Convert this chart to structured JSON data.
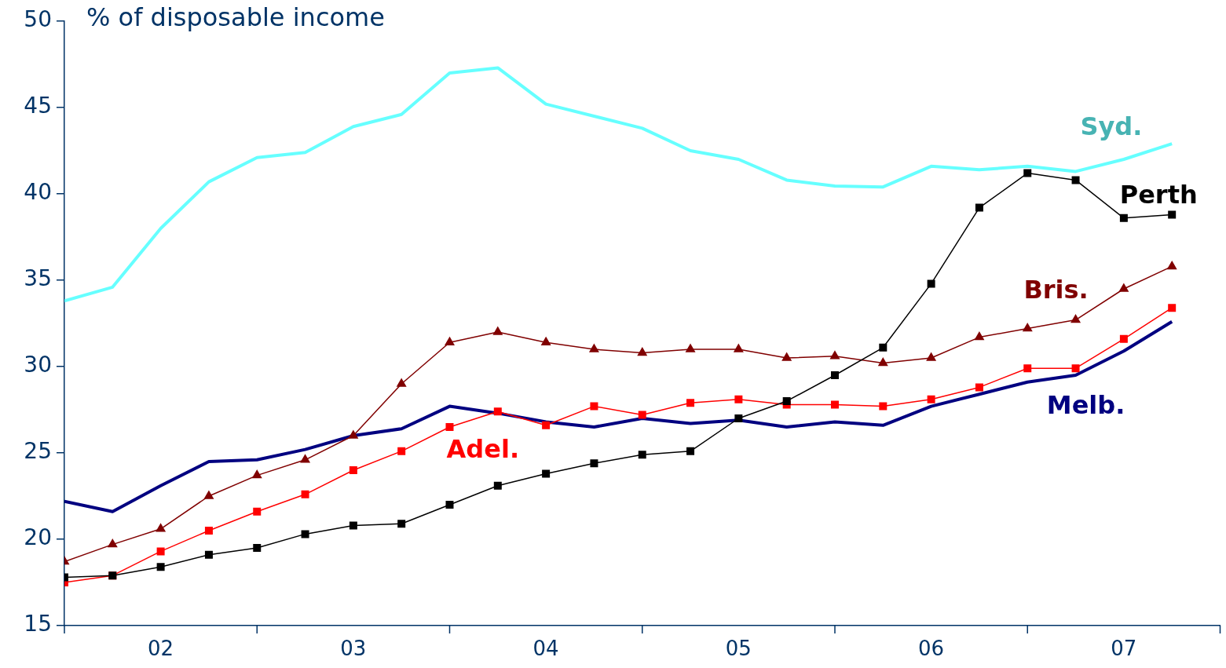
{
  "chart_data": {
    "type": "line",
    "ylabel": "% of disposable income",
    "categories": [
      null,
      null,
      "02",
      null,
      null,
      null,
      "03",
      null,
      null,
      null,
      "04",
      null,
      null,
      null,
      "05",
      null,
      null,
      null,
      "06",
      null,
      null,
      null,
      "07",
      null
    ],
    "ylim": [
      15,
      50
    ],
    "yticks": [
      15,
      20,
      25,
      30,
      35,
      40,
      45,
      50
    ],
    "series": [
      {
        "name": "Syd.",
        "color": "#66ffff",
        "marker": "none",
        "values": [
          33.8,
          34.6,
          38.0,
          40.7,
          42.1,
          42.4,
          43.9,
          44.6,
          47.0,
          47.3,
          45.2,
          44.5,
          43.8,
          42.5,
          42.0,
          40.8,
          40.45,
          40.4,
          41.6,
          41.4,
          41.6,
          41.3,
          42.0,
          42.9
        ]
      },
      {
        "name": "Melb.",
        "color": "#000080",
        "marker": "none",
        "values": [
          22.2,
          21.6,
          23.1,
          24.5,
          24.6,
          25.2,
          26.0,
          26.4,
          27.7,
          27.3,
          26.8,
          26.5,
          27.0,
          26.7,
          26.9,
          26.5,
          26.8,
          26.6,
          27.7,
          28.4,
          29.1,
          29.5,
          30.9,
          32.6
        ]
      },
      {
        "name": "Bris.",
        "color": "#800000",
        "marker": "triangle",
        "values": [
          18.7,
          19.7,
          20.6,
          22.5,
          23.7,
          24.6,
          26.0,
          29.0,
          31.4,
          32.0,
          31.4,
          31.0,
          30.8,
          31.0,
          31.0,
          30.5,
          30.6,
          30.2,
          30.5,
          31.7,
          32.2,
          32.7,
          34.5,
          35.8
        ]
      },
      {
        "name": "Adel.",
        "color": "#ff0000",
        "marker": "square",
        "values": [
          17.5,
          17.9,
          19.3,
          20.5,
          21.6,
          22.6,
          24.0,
          25.1,
          26.5,
          27.4,
          26.6,
          27.7,
          27.2,
          27.9,
          28.1,
          27.8,
          27.8,
          27.7,
          28.1,
          28.8,
          29.9,
          29.9,
          31.6,
          33.4
        ]
      },
      {
        "name": "Perth",
        "color": "#000000",
        "marker": "square",
        "values": [
          17.8,
          17.9,
          18.4,
          19.1,
          19.5,
          20.3,
          20.8,
          20.9,
          22.0,
          23.1,
          23.8,
          24.4,
          24.9,
          25.1,
          27.0,
          28.0,
          29.5,
          31.1,
          34.8,
          39.2,
          41.2,
          40.8,
          38.6,
          38.8
        ]
      }
    ]
  }
}
